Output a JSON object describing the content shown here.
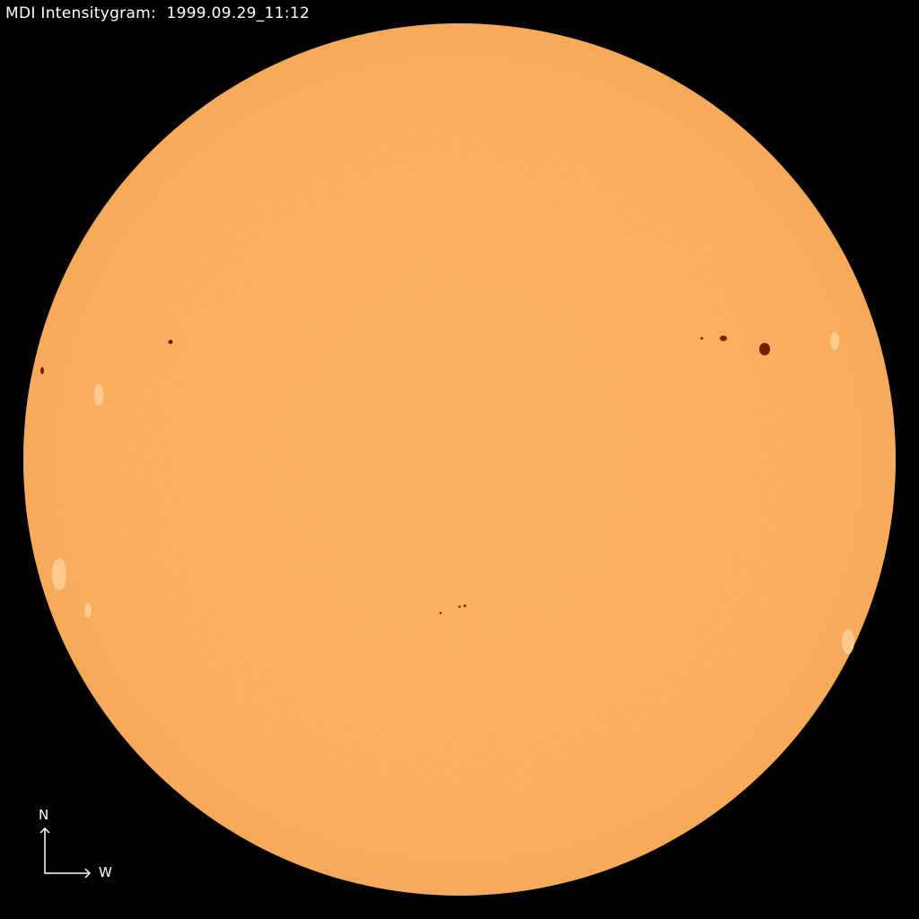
{
  "title": "MDI Intensitygram:  1999.09.29_11:12",
  "compass": {
    "north": "N",
    "west": "W"
  },
  "colors": {
    "background": "#000000",
    "photosphere": "#f9aa58",
    "limb": "#f4a04e",
    "sunspot": "#7a1c00",
    "facula": "#ffd9a8"
  }
}
